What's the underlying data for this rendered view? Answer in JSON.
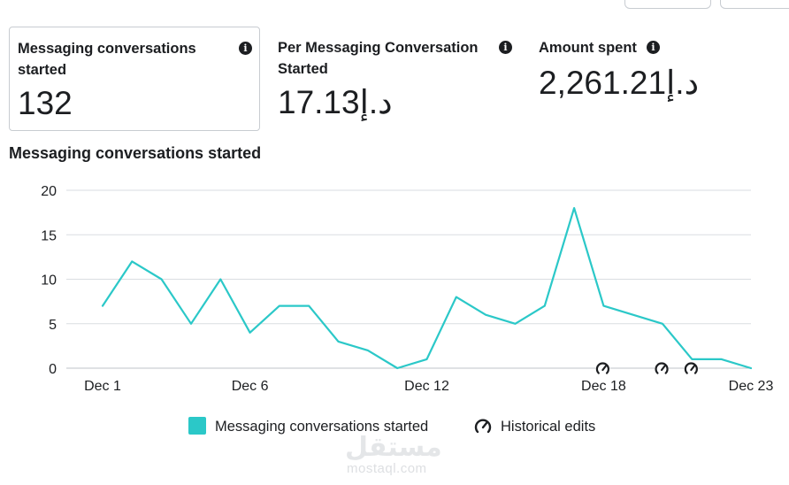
{
  "metrics": [
    {
      "title": "Messaging conversations started",
      "value": "132",
      "selected": true
    },
    {
      "title": "Per Messaging Conversation Started",
      "value": "17.13د.إ"
    },
    {
      "title": "Amount spent",
      "value": "2,261.21د.إ"
    }
  ],
  "info_icon_glyph": "i",
  "section_title": "Messaging conversations started",
  "chart_data": {
    "type": "line",
    "title": "Messaging conversations started",
    "x": [
      "Dec 1",
      "Dec 2",
      "Dec 3",
      "Dec 4",
      "Dec 5",
      "Dec 6",
      "Dec 7",
      "Dec 8",
      "Dec 9",
      "Dec 10",
      "Dec 11",
      "Dec 12",
      "Dec 13",
      "Dec 14",
      "Dec 15",
      "Dec 16",
      "Dec 17",
      "Dec 18",
      "Dec 19",
      "Dec 20",
      "Dec 21",
      "Dec 22",
      "Dec 23"
    ],
    "x_tick_labels": [
      "Dec 1",
      "Dec 6",
      "Dec 12",
      "Dec 18",
      "Dec 23"
    ],
    "series": [
      {
        "name": "Messaging conversations started",
        "color": "#2bc8c8",
        "values": [
          7,
          12,
          10,
          5,
          10,
          4,
          7,
          7,
          3,
          2,
          0,
          1,
          8,
          6,
          5,
          7,
          18,
          7,
          6,
          5,
          1,
          1,
          0
        ]
      }
    ],
    "y_ticks": [
      0,
      5,
      10,
      15,
      20
    ],
    "ylim": [
      0,
      20
    ],
    "grid": true,
    "historical_edit_markers": [
      "Dec 18",
      "Dec 20",
      "Dec 21"
    ],
    "legend": {
      "position": "bottom",
      "entries": [
        "Messaging conversations started",
        "Historical edits"
      ]
    }
  },
  "watermark": {
    "logo": "مستقل",
    "text": "mostaql.com"
  }
}
